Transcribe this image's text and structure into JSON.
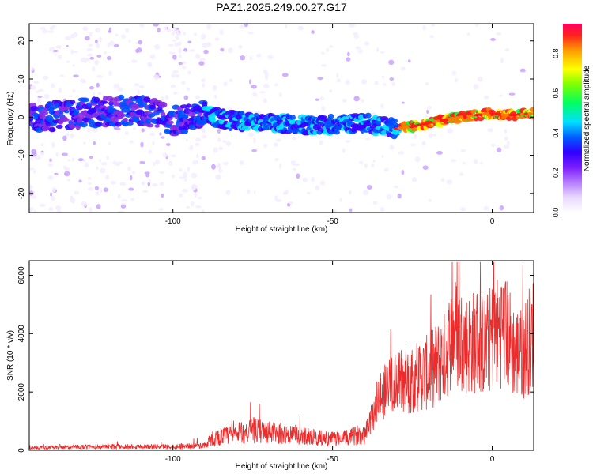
{
  "title": "PAZ1.2025.249.00.27.G17",
  "colors": {
    "snr_line": "#ee2a2a",
    "colormap": [
      "#f4ecff",
      "#c9a3ff",
      "#8a2be2",
      "#3a00ff",
      "#0050ff",
      "#00e5ff",
      "#00ff44",
      "#ffff00",
      "#ff7a00",
      "#ff1a1a"
    ]
  },
  "chart_data": [
    {
      "type": "heatmap",
      "title": "PAZ1.2025.249.00.27.G17",
      "xlabel": "Height of straight line (km)",
      "ylabel": "Frequency (Hz)",
      "xlim": [
        -145,
        13
      ],
      "ylim": [
        -25,
        24.5
      ],
      "xticks": [
        -100,
        -50,
        0
      ],
      "yticks": [
        -20,
        -10,
        0,
        10,
        20
      ],
      "ridge": {
        "x": [
          -140,
          -130,
          -120,
          -110,
          -100,
          -90,
          -80,
          -70,
          -60,
          -50,
          -40,
          -30,
          -25,
          -20,
          -10,
          0,
          5,
          13
        ],
        "frequency": [
          0,
          1,
          1.5,
          2,
          -1,
          0.5,
          -1,
          -1.5,
          -2,
          -2,
          -1.5,
          -3,
          -2.5,
          -1.5,
          0,
          1,
          0.5,
          1
        ]
      },
      "colorbar": {
        "label": "Normalized spectral amplitude",
        "range": [
          0,
          0.95
        ],
        "ticks": [
          0.0,
          0.2,
          0.4,
          0.6,
          0.8
        ]
      }
    },
    {
      "type": "line",
      "xlabel": "Height of straight line (km)",
      "ylabel": "SNR (10 * v/v)",
      "xlim": [
        -145,
        13
      ],
      "ylim": [
        0,
        6500
      ],
      "xticks": [
        -100,
        -50,
        0
      ],
      "yticks": [
        0,
        2000,
        4000,
        6000
      ],
      "envelope": {
        "x": [
          -145,
          -120,
          -100,
          -90,
          -88,
          -85,
          -80,
          -75,
          -70,
          -65,
          -60,
          -55,
          -50,
          -45,
          -40,
          -38,
          -35,
          -30,
          -25,
          -20,
          -15,
          -12,
          -10,
          -8,
          -5,
          -2,
          0,
          3,
          5,
          7,
          9,
          11,
          13
        ],
        "snr": [
          100,
          150,
          150,
          200,
          450,
          550,
          650,
          800,
          700,
          650,
          600,
          500,
          450,
          500,
          700,
          1200,
          2200,
          2600,
          2800,
          3000,
          3600,
          4600,
          4300,
          4100,
          4200,
          4000,
          4400,
          4700,
          4400,
          3800,
          3700,
          4100,
          4600
        ]
      }
    }
  ]
}
